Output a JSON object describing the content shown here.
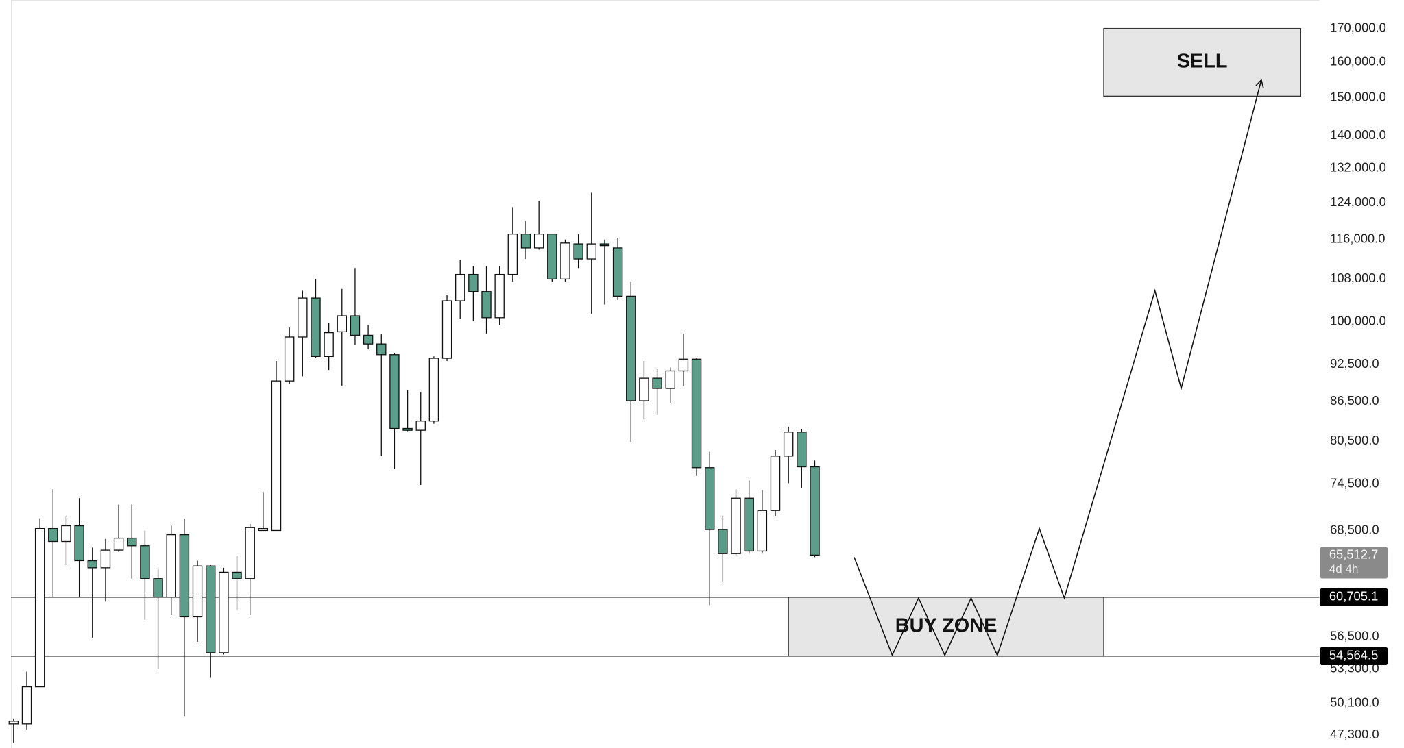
{
  "chart_data": {
    "type": "candlestick",
    "log_scale": true,
    "up_color": "#ffffff",
    "down_color": "#5b9e89",
    "xlim": [
      -0.2,
      99
    ],
    "ylim": [
      46200,
      179000
    ],
    "yticks": [
      {
        "value": 170000,
        "label": "170,000.0"
      },
      {
        "value": 160000,
        "label": "160,000.0"
      },
      {
        "value": 150000,
        "label": "150,000.0"
      },
      {
        "value": 140000,
        "label": "140,000.0"
      },
      {
        "value": 132000,
        "label": "132,000.0"
      },
      {
        "value": 124000,
        "label": "124,000.0"
      },
      {
        "value": 116000,
        "label": "116,000.0"
      },
      {
        "value": 108000,
        "label": "108,000.0"
      },
      {
        "value": 100000,
        "label": "100,000.0"
      },
      {
        "value": 92500,
        "label": "92,500.0"
      },
      {
        "value": 86500,
        "label": "86,500.0"
      },
      {
        "value": 80500,
        "label": "80,500.0"
      },
      {
        "value": 74500,
        "label": "74,500.0"
      },
      {
        "value": 68500,
        "label": "68,500.0"
      },
      {
        "value": 56500,
        "label": "56,500.0"
      },
      {
        "value": 53300,
        "label": "53,300.0"
      },
      {
        "value": 50100,
        "label": "50,100.0"
      },
      {
        "value": 47300,
        "label": "47,300.0"
      }
    ],
    "open": [
      48260,
      48260,
      51620,
      68740,
      67150,
      69090,
      64860,
      64030,
      66110,
      67560,
      66630,
      62780,
      60705,
      67980,
      58590,
      64240,
      54900,
      63510,
      62780,
      68500,
      68500,
      89800,
      97240,
      104350,
      93880,
      98160,
      101040,
      97550,
      96020,
      94180,
      82400,
      82130,
      83510,
      93570,
      103830,
      108910,
      105570,
      100700,
      108910,
      117170,
      114260,
      117170,
      108000,
      115090,
      112000,
      115090,
      114260,
      104700,
      86640,
      90250,
      88600,
      91450,
      93420,
      76750,
      68620,
      65690,
      72630,
      66000,
      71030,
      78380,
      81860,
      76870
    ],
    "high": [
      48740,
      53050,
      70030,
      73810,
      70270,
      72630,
      66420,
      67460,
      71800,
      71800,
      68500,
      63820,
      69090,
      69910,
      64860,
      64340,
      64030,
      65380,
      69330,
      73450,
      93110,
      98930,
      105740,
      108000,
      99690,
      106090,
      110180,
      99390,
      97700,
      94490,
      88300,
      88000,
      93880,
      104870,
      111820,
      110550,
      110550,
      110550,
      123030,
      119900,
      124410,
      117170,
      116000,
      117170,
      126260,
      116000,
      116390,
      107480,
      93110,
      91750,
      92040,
      97860,
      93570,
      79000,
      70270,
      73810,
      74980,
      73690,
      79240,
      82670,
      82260,
      77750
    ],
    "low": [
      46660,
      47780,
      51620,
      60705,
      64340,
      60705,
      56420,
      60225,
      65900,
      62780,
      58300,
      53300,
      58780,
      48900,
      56000,
      52460,
      54730,
      59260,
      58780,
      68500,
      68500,
      89350,
      90550,
      93570,
      91600,
      89050,
      95870,
      95100,
      78380,
      76620,
      81990,
      74380,
      83100,
      93110,
      100520,
      100170,
      97860,
      99390,
      107480,
      112000,
      113900,
      107480,
      107480,
      110180,
      101390,
      103130,
      104000,
      80380,
      83910,
      84450,
      86230,
      89050,
      75620,
      59840,
      62470,
      65380,
      65690,
      65690,
      70270,
      74620,
      74030,
      65270
    ],
    "close": [
      48500,
      51620,
      68740,
      67150,
      69090,
      64860,
      64030,
      66110,
      67560,
      66630,
      62780,
      60705,
      67980,
      58590,
      64240,
      54900,
      63510,
      62780,
      68860,
      68740,
      89800,
      97240,
      104350,
      93880,
      98010,
      101040,
      97550,
      96020,
      94180,
      82400,
      82130,
      83510,
      93570,
      103830,
      108910,
      105570,
      100700,
      108910,
      117170,
      114260,
      117170,
      108000,
      115270,
      112000,
      115090,
      114730,
      104700,
      86640,
      90250,
      88600,
      91450,
      93420,
      76750,
      68620,
      65690,
      72630,
      66000,
      71030,
      78380,
      81860,
      76870,
      65512.7
    ],
    "last_price": {
      "value": 65512.7,
      "label": "65,512.7",
      "countdown": "4d 4h"
    },
    "levels": [
      {
        "value": 60705.1,
        "label": "60,705.1"
      },
      {
        "value": 54564.5,
        "label": "54,564.5"
      }
    ],
    "zones": [
      {
        "label": "BUY ZONE",
        "x": [
          59,
          83
        ],
        "y": [
          54564.5,
          60705.1
        ]
      },
      {
        "label": "SELL",
        "x": [
          83,
          98
        ],
        "y": [
          150400,
          170000
        ]
      }
    ],
    "projection": {
      "x": [
        64,
        66.9,
        68.9,
        70.9,
        72.9,
        74.9,
        78.1,
        80,
        86.9,
        88.9,
        95
      ],
      "y": [
        65270,
        54650,
        60610,
        54650,
        60610,
        54650,
        68740,
        60610,
        105740,
        88600,
        154870
      ]
    }
  }
}
